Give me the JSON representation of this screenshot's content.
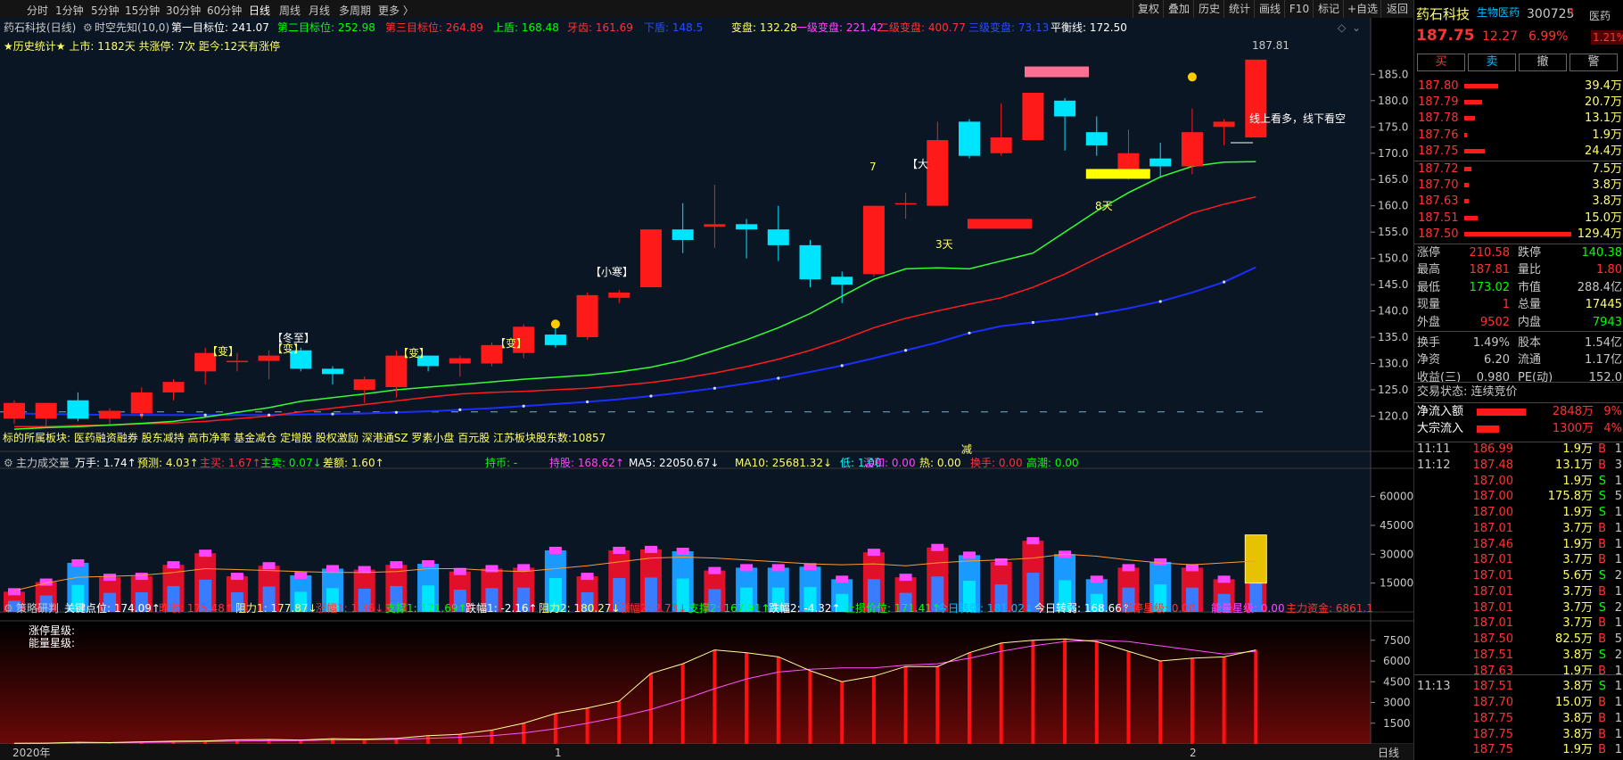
{
  "topbar": {
    "periods": [
      "分时",
      "1分钟",
      "5分钟",
      "15分钟",
      "30分钟",
      "60分钟",
      "日线",
      "周线",
      "月线",
      "多周期",
      "更多 〉"
    ],
    "right_buttons": [
      "复权",
      "叠加",
      "历史",
      "统计",
      "画线",
      "F10",
      "标记",
      "+自选",
      "返回"
    ]
  },
  "chart_header": {
    "stock": "药石科技(日线)",
    "indicator": "时空先知(10,0)",
    "items": [
      {
        "text": "第一目标位: 241.07",
        "color": "#ffffff"
      },
      {
        "text": "第二目标位: 252.98",
        "color": "#00ff00"
      },
      {
        "text": "第三目标位: 264.89",
        "color": "#ff3333"
      },
      {
        "text": "上盾: 168.48",
        "color": "#00ff00"
      },
      {
        "text": "牙齿: 161.69",
        "color": "#ff3333"
      },
      {
        "text": "下盾: 148.5",
        "color": "#2a4cff"
      },
      {
        "text": "变盘: 132.28",
        "color": "#ffff66"
      },
      {
        "text": "一级变盘: 221.42",
        "color": "#ff44ff"
      },
      {
        "text": "二级变盘: 400.77",
        "color": "#ff3333"
      },
      {
        "text": "三级变盘: 73.13",
        "color": "#2a4cff"
      },
      {
        "text": "平衡线: 172.50",
        "color": "#ffffff"
      }
    ],
    "history": "★历史统计★  上市: 1182天   共涨停: 7次   距今:12天有涨停"
  },
  "chart_data": [
    {
      "type": "candlestick",
      "title": "药石科技(日线)",
      "ylim": [
        116,
        191
      ],
      "y_ticks": [
        120,
        125,
        130,
        135,
        140,
        145,
        150,
        155,
        160,
        165,
        170,
        175,
        180,
        185
      ],
      "x_labels": [
        "2020年",
        "1",
        "2"
      ],
      "candles": [
        {
          "o": 119.5,
          "h": 123.0,
          "l": 118.5,
          "c": 122.5
        },
        {
          "o": 119.5,
          "h": 122.0,
          "l": 118.0,
          "c": 122.5
        },
        {
          "o": 123.0,
          "h": 124.5,
          "l": 119.0,
          "c": 119.5
        },
        {
          "o": 119.5,
          "h": 121.5,
          "l": 118.5,
          "c": 121.0
        },
        {
          "o": 120.5,
          "h": 125.5,
          "l": 119.5,
          "c": 124.5
        },
        {
          "o": 124.5,
          "h": 127.0,
          "l": 123.0,
          "c": 126.5
        },
        {
          "o": 128.5,
          "h": 133.0,
          "l": 126.0,
          "c": 132.0
        },
        {
          "o": 130.5,
          "h": 132.0,
          "l": 128.5,
          "c": 130.5
        },
        {
          "o": 130.5,
          "h": 132.5,
          "l": 127.0,
          "c": 131.5
        },
        {
          "o": 132.5,
          "h": 133.0,
          "l": 128.5,
          "c": 129.0
        },
        {
          "o": 129.0,
          "h": 129.5,
          "l": 126.0,
          "c": 128.0
        },
        {
          "o": 125.0,
          "h": 127.5,
          "l": 122.5,
          "c": 127.0
        },
        {
          "o": 125.5,
          "h": 132.5,
          "l": 123.5,
          "c": 131.5
        },
        {
          "o": 131.5,
          "h": 131.5,
          "l": 128.5,
          "c": 129.5
        },
        {
          "o": 130.0,
          "h": 131.5,
          "l": 127.5,
          "c": 131.0
        },
        {
          "o": 130.0,
          "h": 134.0,
          "l": 129.5,
          "c": 133.5
        },
        {
          "o": 132.0,
          "h": 137.5,
          "l": 131.0,
          "c": 137.0
        },
        {
          "o": 135.5,
          "h": 137.0,
          "l": 133.0,
          "c": 133.5
        },
        {
          "o": 135.0,
          "h": 143.5,
          "l": 134.5,
          "c": 143.0
        },
        {
          "o": 142.5,
          "h": 144.0,
          "l": 141.5,
          "c": 143.5
        },
        {
          "o": 144.5,
          "h": 155.5,
          "l": 144.5,
          "c": 155.5
        },
        {
          "o": 155.5,
          "h": 160.5,
          "l": 151.0,
          "c": 153.5
        },
        {
          "o": 156.0,
          "h": 164.0,
          "l": 152.0,
          "c": 156.5
        },
        {
          "o": 156.5,
          "h": 157.5,
          "l": 150.0,
          "c": 155.5
        },
        {
          "o": 155.5,
          "h": 160.0,
          "l": 149.5,
          "c": 152.5
        },
        {
          "o": 152.5,
          "h": 153.5,
          "l": 144.5,
          "c": 146.0
        },
        {
          "o": 146.5,
          "h": 147.5,
          "l": 141.5,
          "c": 145.0
        },
        {
          "o": 147.0,
          "h": 160.0,
          "l": 146.5,
          "c": 160.0
        },
        {
          "o": 160.5,
          "h": 162.5,
          "l": 157.5,
          "c": 160.5
        },
        {
          "o": 160.0,
          "h": 176.0,
          "l": 160.0,
          "c": 172.5
        },
        {
          "o": 176.0,
          "h": 176.5,
          "l": 169.0,
          "c": 169.5
        },
        {
          "o": 170.0,
          "h": 179.5,
          "l": 169.5,
          "c": 173.0
        },
        {
          "o": 172.5,
          "h": 181.5,
          "l": 172.5,
          "c": 181.5
        },
        {
          "o": 180.0,
          "h": 180.5,
          "l": 170.5,
          "c": 177.0
        },
        {
          "o": 174.0,
          "h": 177.0,
          "l": 169.5,
          "c": 171.5
        },
        {
          "o": 167.0,
          "h": 174.5,
          "l": 165.0,
          "c": 170.0
        },
        {
          "o": 169.0,
          "h": 172.0,
          "l": 165.5,
          "c": 167.5
        },
        {
          "o": 167.5,
          "h": 178.5,
          "l": 166.0,
          "c": 174.0
        },
        {
          "o": 175.0,
          "h": 176.5,
          "l": 171.5,
          "c": 176.0
        },
        {
          "o": 173.0,
          "h": 187.8,
          "l": 173.0,
          "c": 187.8
        }
      ],
      "ma_green": [
        117.5,
        117.8,
        118.0,
        118.3,
        118.6,
        119.0,
        119.8,
        120.7,
        121.6,
        122.8,
        123.5,
        124.2,
        125.0,
        125.5,
        126.0,
        126.5,
        127.0,
        127.4,
        127.8,
        128.4,
        129.3,
        130.6,
        132.5,
        134.5,
        136.8,
        139.5,
        142.8,
        146.0,
        148.0,
        148.2,
        148.0,
        149.5,
        151.0,
        155.0,
        159.0,
        162.5,
        165.5,
        167.5,
        168.3,
        168.4
      ],
      "ma_red": [
        118.0,
        118.0,
        118.2,
        118.3,
        118.5,
        118.7,
        119.0,
        119.5,
        120.0,
        120.8,
        121.5,
        122.2,
        122.9,
        123.6,
        124.2,
        124.5,
        124.7,
        125.0,
        125.3,
        125.8,
        126.4,
        127.2,
        128.2,
        129.4,
        130.8,
        132.5,
        134.5,
        136.8,
        138.6,
        140.0,
        141.3,
        142.5,
        144.5,
        147.0,
        150.0,
        152.9,
        155.8,
        158.6,
        160.3,
        161.7
      ],
      "ma_blue": [
        120.5,
        120.4,
        120.3,
        120.2,
        120.2,
        120.2,
        120.2,
        120.2,
        120.2,
        120.3,
        120.4,
        120.5,
        120.7,
        120.9,
        121.2,
        121.5,
        121.9,
        122.3,
        122.7,
        123.2,
        123.8,
        124.5,
        125.3,
        126.2,
        127.2,
        128.4,
        129.6,
        131.0,
        132.5,
        134.0,
        135.8,
        137.1,
        137.8,
        138.5,
        139.4,
        140.5,
        141.8,
        143.5,
        145.5,
        148.3
      ],
      "dashed_line": 120.8
    },
    {
      "type": "bar",
      "title": "主力成交量",
      "ylim": [
        0,
        70000
      ],
      "y_ticks": [
        15000,
        30000,
        45000,
        60000
      ],
      "volume": [
        10500,
        15500,
        25500,
        18000,
        18500,
        24500,
        30500,
        18500,
        24000,
        19000,
        22500,
        22000,
        24500,
        25000,
        21000,
        22500,
        23000,
        32000,
        18500,
        32000,
        32500,
        31500,
        21500,
        23000,
        23000,
        23500,
        17000,
        31000,
        18000,
        33500,
        29500,
        26000,
        37000,
        30000,
        17000,
        23000,
        26000,
        23000,
        17000,
        35000
      ],
      "orange_line": [
        11000,
        15000,
        18000,
        18500,
        19000,
        20500,
        22500,
        22000,
        21500,
        21000,
        20500,
        20500,
        21000,
        22500,
        22500,
        21500,
        21000,
        22500,
        24000,
        26000,
        28000,
        28500,
        28000,
        27000,
        26000,
        25000,
        24500,
        25000,
        24000,
        25500,
        26500,
        27000,
        28000,
        30000,
        29000,
        27000,
        25500,
        24500,
        25500,
        26500
      ],
      "yellow_bar_value": 40000
    },
    {
      "type": "bar",
      "title": "策略研判",
      "ylim": [
        0,
        8000
      ],
      "y_ticks": [
        1500,
        3000,
        4500,
        6000,
        7500
      ],
      "strength": [
        50,
        60,
        120,
        100,
        150,
        200,
        220,
        300,
        320,
        280,
        380,
        350,
        400,
        600,
        700,
        1000,
        1500,
        2200,
        2600,
        3100,
        5100,
        5800,
        6800,
        6600,
        6300,
        5300,
        4500,
        4900,
        5600,
        5600,
        6600,
        7300,
        7500,
        7600,
        7400,
        6700,
        6000,
        6200,
        6300,
        6800
      ],
      "yellow_line": [
        50,
        60,
        120,
        100,
        150,
        200,
        220,
        300,
        320,
        280,
        380,
        350,
        400,
        600,
        700,
        1000,
        1500,
        2200,
        2600,
        3100,
        5100,
        5800,
        6800,
        6600,
        6300,
        5300,
        4500,
        4900,
        5600,
        5600,
        6600,
        7300,
        7500,
        7600,
        7400,
        6700,
        6000,
        6200,
        6300,
        6800
      ],
      "magenta_line": [
        40,
        50,
        80,
        90,
        110,
        140,
        170,
        200,
        230,
        250,
        280,
        300,
        330,
        400,
        480,
        600,
        800,
        1100,
        1500,
        1950,
        2500,
        3200,
        4000,
        4700,
        5200,
        5400,
        5500,
        5500,
        5700,
        5800,
        6200,
        6700,
        7100,
        7400,
        7500,
        7400,
        7100,
        6800,
        6500,
        6700
      ]
    }
  ],
  "annotations": [
    {
      "text": "【变】",
      "color": "#ffff66"
    },
    {
      "text": "【冬至】",
      "color": "#ffffff"
    },
    {
      "text": "【变】",
      "color": "#ffff66"
    },
    {
      "text": "【变】",
      "color": "#ffff66"
    },
    {
      "text": "【变】",
      "color": "#ffff66"
    },
    {
      "text": "【小寒】",
      "color": "#ffffff"
    },
    {
      "text": "7",
      "color": "#ffff66"
    },
    {
      "text": "【大",
      "color": "#ffffff"
    },
    {
      "text": "3天",
      "color": "#ffff66"
    },
    {
      "text": "8天",
      "color": "#ffff66"
    },
    {
      "text": "线上看多，线下看空",
      "color": "#ffffff"
    },
    {
      "text": "187.81",
      "color": "#c8c8c8"
    },
    {
      "text": "减",
      "color": "#ffff66"
    }
  ],
  "concept_line": "标的所属板块: 医药融资融券 股东减持 高市净率 基金减仓 定增股 股权激励 深港通SZ 罗素小盘 百元股 江苏板块股东数:10857",
  "vol_header": {
    "title": "主力成交量",
    "items": [
      {
        "text": "万手: 1.74↑",
        "color": "#ffffff"
      },
      {
        "text": "预测: 4.03↑",
        "color": "#ffff66"
      },
      {
        "text": "主买: 1.67↑",
        "color": "#ff3333"
      },
      {
        "text": "主卖: 0.07↓",
        "color": "#00ff00"
      },
      {
        "text": "差额: 1.60↑",
        "color": "#ffff66"
      },
      {
        "text": "持币: -",
        "color": "#00ff00"
      },
      {
        "text": "持股: 168.62↑",
        "color": "#ff44ff"
      },
      {
        "text": "MA5: 22050.67↓",
        "color": "#ffffff"
      },
      {
        "text": "MA10: 25681.32↓",
        "color": "#ffff66"
      },
      {
        "text": "低: 1.00",
        "color": "#00ffff"
      },
      {
        "text": "温和: 0.00",
        "color": "#ff44ff"
      },
      {
        "text": "热: 0.00",
        "color": "#ffff66"
      },
      {
        "text": "换手: 0.00",
        "color": "#ff3333"
      },
      {
        "text": "高潮: 0.00",
        "color": "#00ff00"
      }
    ]
  },
  "strategy_header": {
    "title": "策略研判",
    "items": [
      {
        "text": "关键点位: 174.09↑",
        "color": "#ffffff"
      },
      {
        "text": "昨收: 175.48↑",
        "color": "#ff3333"
      },
      {
        "text": "阻力1: 177.87↓",
        "color": "#ffff66"
      },
      {
        "text": "涨幅1: 1.36↓",
        "color": "#ff3333"
      },
      {
        "text": "支撑1: 171.69↑",
        "color": "#00ff00"
      },
      {
        "text": "跌幅1: -2.16↑",
        "color": "#ffffff"
      },
      {
        "text": "阻力2: 180.27↓",
        "color": "#ffff66"
      },
      {
        "text": "涨幅2: 2.73↓",
        "color": "#ff3333"
      },
      {
        "text": "支撑2: 167.91↑",
        "color": "#00ff00"
      },
      {
        "text": "跌幅2: -4.32↑",
        "color": "#ffffff"
      },
      {
        "text": "止损价位: 171.41↑",
        "color": "#00ff00"
      },
      {
        "text": "今日转强: 181.02↓",
        "color": "#00bfff"
      },
      {
        "text": "今日转弱: 168.66↑",
        "color": "#ffffff"
      },
      {
        "text": "涨停星级: 0.00",
        "color": "#ff3333"
      },
      {
        "text": "能量星级: 0.00",
        "color": "#ff44ff"
      },
      {
        "text": "主力资金: 6861.1",
        "color": "#ff3333"
      }
    ],
    "star_labels": [
      "涨停星级:",
      "能量星级:"
    ]
  },
  "bottom_axis": {
    "labels": [
      "2020年",
      "1",
      "2"
    ],
    "period": "日线"
  },
  "right_panel": {
    "name": "药石科技",
    "sector": "生物医药",
    "code": "300725",
    "r_mark": "R",
    "industry": "医药",
    "industry_pct": "1.21%",
    "price": "187.75",
    "change": "12.27",
    "pct": "6.99%",
    "trade_buttons": [
      "买",
      "卖",
      "撤",
      "警"
    ],
    "asks": [
      {
        "p": "187.80",
        "v": "39.4万",
        "bar": 0.25
      },
      {
        "p": "187.79",
        "v": "20.7万",
        "bar": 0.13
      },
      {
        "p": "187.78",
        "v": "13.1万",
        "bar": 0.08
      },
      {
        "p": "187.76",
        "v": "1.9万",
        "bar": 0.02
      },
      {
        "p": "187.75",
        "v": "24.4万",
        "bar": 0.15
      }
    ],
    "bids": [
      {
        "p": "187.72",
        "v": "7.5万",
        "bar": 0.05
      },
      {
        "p": "187.70",
        "v": "3.8万",
        "bar": 0.03
      },
      {
        "p": "187.63",
        "v": "3.8万",
        "bar": 0.03
      },
      {
        "p": "187.51",
        "v": "15.0万",
        "bar": 0.1
      },
      {
        "p": "187.50",
        "v": "129.4万",
        "bar": 0.8
      }
    ],
    "stats": [
      [
        "涨停",
        "210.58",
        "跌停",
        "140.38"
      ],
      [
        "最高",
        "187.81",
        "量比",
        "1.80"
      ],
      [
        "最低",
        "173.02",
        "市值",
        "288.4亿"
      ],
      [
        "现量",
        "1",
        "总量",
        "17445"
      ],
      [
        "外盘",
        "9502",
        "内盘",
        "7943"
      ],
      [
        "换手",
        "1.49%",
        "股本",
        "1.54亿"
      ],
      [
        "净资",
        "6.20",
        "流通",
        "1.17亿"
      ],
      [
        "收益(三)",
        "0.980",
        "PE(动)",
        "152.0"
      ]
    ],
    "trade_status": "交易状态: 连续竞价",
    "flows": [
      {
        "label": "净流入额",
        "val": "2848万",
        "pct": "9%",
        "bar": 0.55
      },
      {
        "label": "大宗流入",
        "val": "1300万",
        "pct": "4%",
        "bar": 0.25
      }
    ],
    "ticks": [
      {
        "time": "11:11",
        "price": "186.99",
        "vol": "1.9万",
        "bs": "B",
        "n": "1"
      },
      {
        "time": "11:12",
        "price": "187.48",
        "vol": "13.1万",
        "bs": "B",
        "n": "3"
      },
      {
        "time": "",
        "price": "187.00",
        "vol": "1.9万",
        "bs": "S",
        "n": "1"
      },
      {
        "time": "",
        "price": "187.00",
        "vol": "175.8万",
        "bs": "S",
        "n": "5"
      },
      {
        "time": "",
        "price": "187.00",
        "vol": "1.9万",
        "bs": "S",
        "n": "1"
      },
      {
        "time": "",
        "price": "187.01",
        "vol": "3.7万",
        "bs": "B",
        "n": "1"
      },
      {
        "time": "",
        "price": "187.46",
        "vol": "1.9万",
        "bs": "B",
        "n": "1"
      },
      {
        "time": "",
        "price": "187.01",
        "vol": "3.7万",
        "bs": "B",
        "n": "1"
      },
      {
        "time": "",
        "price": "187.01",
        "vol": "5.6万",
        "bs": "S",
        "n": "2"
      },
      {
        "time": "",
        "price": "187.01",
        "vol": "3.7万",
        "bs": "B",
        "n": "1"
      },
      {
        "time": "",
        "price": "187.01",
        "vol": "3.7万",
        "bs": "S",
        "n": "2"
      },
      {
        "time": "",
        "price": "187.01",
        "vol": "3.7万",
        "bs": "B",
        "n": "1"
      },
      {
        "time": "",
        "price": "187.50",
        "vol": "82.5万",
        "bs": "B",
        "n": "5"
      },
      {
        "time": "",
        "price": "187.51",
        "vol": "3.8万",
        "bs": "S",
        "n": "2"
      },
      {
        "time": "",
        "price": "187.63",
        "vol": "1.9万",
        "bs": "B",
        "n": "1"
      },
      {
        "time": "11:13",
        "price": "187.51",
        "vol": "3.8万",
        "bs": "S",
        "n": "1"
      },
      {
        "time": "",
        "price": "187.70",
        "vol": "15.0万",
        "bs": "B",
        "n": "1"
      },
      {
        "time": "",
        "price": "187.75",
        "vol": "3.8万",
        "bs": "B",
        "n": "1"
      },
      {
        "time": "",
        "price": "187.75",
        "vol": "3.8万",
        "bs": "B",
        "n": "1"
      },
      {
        "time": "",
        "price": "187.75",
        "vol": "1.9万",
        "bs": "B",
        "n": "1"
      }
    ]
  }
}
